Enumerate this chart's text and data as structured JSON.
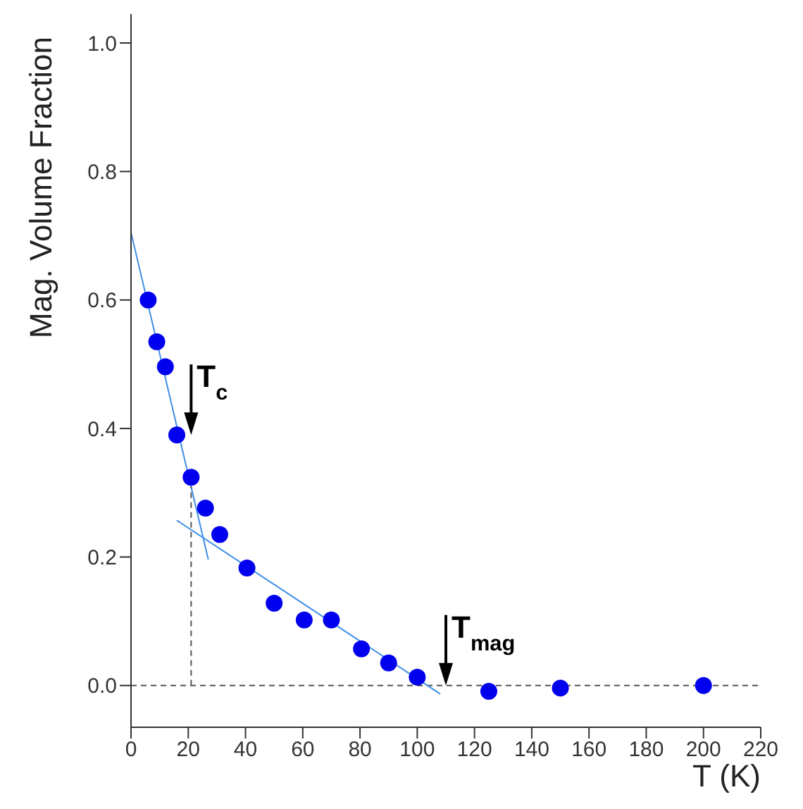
{
  "chart_data": {
    "type": "scatter",
    "xlabel": "T (K)",
    "ylabel": "Mag. Volume Fraction",
    "xlim": [
      0,
      220
    ],
    "xticks": [
      0,
      20,
      40,
      60,
      80,
      100,
      120,
      140,
      160,
      180,
      200,
      220
    ],
    "ylim": [
      -0.065,
      1.045
    ],
    "yticks": [
      {
        "value": 0,
        "label": "0.0"
      },
      {
        "value": 0.2,
        "label": "0.2"
      },
      {
        "value": 0.4,
        "label": "0.4"
      },
      {
        "value": 0.6,
        "label": "0.6"
      },
      {
        "value": 0.8,
        "label": "0.8"
      },
      {
        "value": 1,
        "label": "1.0"
      }
    ],
    "grid": false,
    "legend": false,
    "series": [
      {
        "marker": "circle",
        "color": "#0000ee",
        "x": [
          6,
          9,
          12,
          16,
          21,
          26,
          31,
          40.5,
          50,
          60.5,
          70,
          80.5,
          90,
          100,
          125,
          150,
          200
        ],
        "values": [
          0.6,
          0.535,
          0.496,
          0.39,
          0.324,
          0.276,
          0.235,
          0.183,
          0.128,
          0.102,
          0.102,
          0.057,
          0.035,
          0.013,
          -0.009,
          -0.004,
          0.0
        ]
      },
      {
        "type": "line",
        "marker": "none",
        "color": "#3f8fe8",
        "x": [
          0,
          27
        ],
        "values": [
          0.705,
          0.196
        ]
      },
      {
        "type": "line",
        "marker": "none",
        "color": "#3f8fe8",
        "x": [
          16,
          108
        ],
        "values": [
          0.257,
          -0.013
        ]
      },
      {
        "type": "line",
        "marker": "none",
        "color": "#555555",
        "line_style": "dashed",
        "x": [
          21,
          21
        ],
        "values": [
          0,
          0.31
        ]
      }
    ],
    "ref_lines": [
      {
        "axis": "y",
        "value": 0,
        "color": "#555555",
        "line_style": "dashed"
      }
    ],
    "annotations": [
      {
        "text": "T$_{c}$",
        "x": 21,
        "y": 0.39
      },
      {
        "text": "T$_{mag}$",
        "x": 110,
        "y": 0
      }
    ]
  }
}
